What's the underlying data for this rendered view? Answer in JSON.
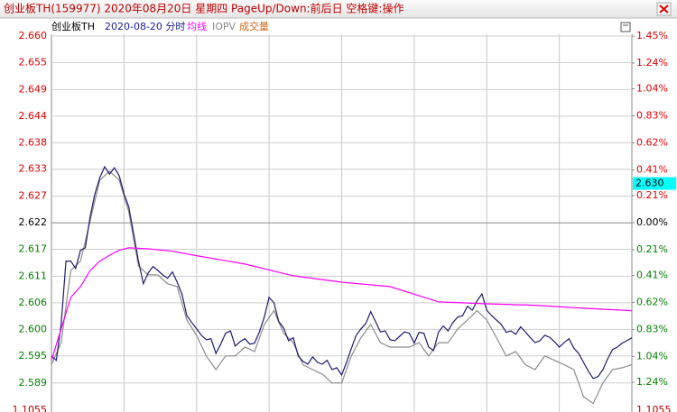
{
  "window_title": "创业板TH(159977) 2020年08月20日 星期四 PageUp/Down:前后日 空格键:操作",
  "chart_data": {
    "type": "line",
    "title": "创业板TH",
    "subtitle": "2020-08-20 分时",
    "volume_label": "成交量",
    "volume_axis_label": "1.1055",
    "price_marker": {
      "value": 2.63,
      "label": "2.630"
    },
    "up_color": "#e00000",
    "down_color": "#008000",
    "grid": true,
    "xlim": [
      0,
      240
    ],
    "ylim": [
      2.5844,
      2.66
    ],
    "yticks": [
      {
        "value": 2.66,
        "label": "2.660"
      },
      {
        "value": 2.6546,
        "label": "2.655"
      },
      {
        "value": 2.6491,
        "label": "2.649"
      },
      {
        "value": 2.6437,
        "label": "2.644"
      },
      {
        "value": 2.6383,
        "label": "2.638"
      },
      {
        "value": 2.6329,
        "label": "2.633"
      },
      {
        "value": 2.6274,
        "label": "2.627"
      },
      {
        "value": 2.622,
        "label": "2.622"
      },
      {
        "value": 2.6166,
        "label": "2.617"
      },
      {
        "value": 2.6111,
        "label": "2.611"
      },
      {
        "value": 2.6057,
        "label": "2.606"
      },
      {
        "value": 2.6003,
        "label": "2.600"
      },
      {
        "value": 2.5949,
        "label": "2.595"
      },
      {
        "value": 2.5894,
        "label": "2.589"
      }
    ],
    "y2lim": [
      -1.436,
      1.45
    ],
    "y2ticks": [
      {
        "value": 1.45,
        "label": "1.45%"
      },
      {
        "value": 1.24,
        "label": "1.24%"
      },
      {
        "value": 1.04,
        "label": "1.04%"
      },
      {
        "value": 0.83,
        "label": "0.83%"
      },
      {
        "value": 0.62,
        "label": "0.62%"
      },
      {
        "value": 0.41,
        "label": "0.41%"
      },
      {
        "value": 0.21,
        "label": "0.21%"
      },
      {
        "value": 0,
        "label": "0.00%"
      },
      {
        "value": -0.21,
        "label": "0.21%"
      },
      {
        "value": -0.41,
        "label": "0.41%"
      },
      {
        "value": -0.62,
        "label": "0.62%"
      },
      {
        "value": -0.83,
        "label": "0.83%"
      },
      {
        "value": -1.04,
        "label": "1.04%"
      },
      {
        "value": -1.24,
        "label": "1.24%"
      }
    ],
    "series": [
      {
        "name": "IOPV",
        "color": "#8c8c8c",
        "x": [
          0,
          4,
          8,
          12,
          16,
          20,
          24,
          28,
          32,
          36,
          40,
          44,
          48,
          52,
          56,
          60,
          64,
          68,
          72,
          76,
          80,
          84,
          88,
          92,
          96,
          100,
          104,
          108,
          112,
          116,
          120,
          124,
          128,
          132,
          136,
          140,
          144,
          148,
          152,
          156,
          160,
          164,
          168,
          172,
          176,
          180,
          184,
          188,
          192,
          196,
          200,
          204,
          208,
          212,
          216,
          220,
          224,
          228,
          232,
          236,
          240
        ],
        "values": [
          2.5931,
          2.5976,
          2.6123,
          2.6142,
          2.6224,
          2.6307,
          2.6325,
          2.6307,
          2.6242,
          2.6132,
          2.6114,
          2.6114,
          2.6096,
          2.609,
          2.6022,
          2.5991,
          2.5949,
          2.5921,
          2.5949,
          2.5949,
          2.5967,
          2.5958,
          2.6013,
          2.6041,
          2.5995,
          2.5976,
          2.5931,
          2.5921,
          2.5912,
          2.5894,
          2.5894,
          2.5949,
          2.5986,
          2.6013,
          2.5976,
          2.5967,
          2.5967,
          2.5967,
          2.5976,
          2.5949,
          2.5976,
          2.5976,
          2.6004,
          2.6022,
          2.6041,
          2.6022,
          2.5986,
          2.5949,
          2.5958,
          2.5931,
          2.5921,
          2.5949,
          2.594,
          2.5931,
          2.5921,
          2.5866,
          2.5852,
          2.5894,
          2.5921,
          2.5925,
          2.5931
        ]
      },
      {
        "color": "#1c1c6e",
        "x": [
          0,
          2,
          4,
          6,
          8,
          10,
          12,
          14,
          16,
          18,
          20,
          22,
          24,
          26,
          28,
          30,
          32,
          34,
          36,
          38,
          40,
          42,
          44,
          46,
          48,
          50,
          52,
          54,
          56,
          58,
          60,
          62,
          64,
          66,
          68,
          70,
          72,
          74,
          76,
          78,
          80,
          82,
          84,
          86,
          88,
          90,
          92,
          94,
          96,
          98,
          100,
          102,
          104,
          106,
          108,
          110,
          112,
          114,
          116,
          118,
          120,
          122,
          124,
          126,
          128,
          130,
          132,
          134,
          136,
          138,
          140,
          142,
          144,
          146,
          148,
          150,
          152,
          154,
          156,
          158,
          160,
          162,
          164,
          166,
          168,
          170,
          172,
          174,
          176,
          178,
          180,
          182,
          184,
          186,
          188,
          190,
          192,
          194,
          196,
          198,
          200,
          202,
          204,
          206,
          208,
          210,
          212,
          214,
          216,
          218,
          220,
          222,
          224,
          226,
          228,
          230,
          232,
          234,
          236,
          238,
          240
        ],
        "values": [
          2.5949,
          2.594,
          2.6013,
          2.6142,
          2.6142,
          2.6127,
          2.6164,
          2.6169,
          2.6233,
          2.6279,
          2.6312,
          2.6334,
          2.6319,
          2.6332,
          2.6316,
          2.6279,
          2.6252,
          2.6197,
          2.6142,
          2.6096,
          2.6118,
          2.6131,
          2.6123,
          2.6114,
          2.6107,
          2.612,
          2.6099,
          2.6074,
          2.6031,
          2.6017,
          2.6004,
          2.5991,
          2.5982,
          2.5984,
          2.5954,
          2.5973,
          2.5995,
          2.6,
          2.5969,
          2.5978,
          2.5984,
          2.5973,
          2.5975,
          2.5998,
          2.6028,
          2.6068,
          2.6057,
          2.6019,
          2.6006,
          2.598,
          2.5986,
          2.5949,
          2.5938,
          2.5932,
          2.5947,
          2.5936,
          2.5932,
          2.594,
          2.5921,
          2.5925,
          2.591,
          2.5936,
          2.5964,
          2.5991,
          2.6004,
          2.6015,
          2.6039,
          2.6019,
          2.5998,
          2.6,
          2.5982,
          2.598,
          2.5989,
          2.5998,
          2.5995,
          2.5975,
          2.5997,
          2.5995,
          2.5967,
          2.596,
          2.5997,
          2.601,
          2.6,
          2.6017,
          2.6028,
          2.6031,
          2.605,
          2.6042,
          2.6061,
          2.6075,
          2.6042,
          2.6031,
          2.6022,
          2.6013,
          2.5997,
          2.6,
          2.5993,
          2.6008,
          2.5998,
          2.5986,
          2.5976,
          2.598,
          2.5991,
          2.5987,
          2.5978,
          2.5967,
          2.5976,
          2.5984,
          2.5965,
          2.5954,
          2.5936,
          2.5918,
          2.5903,
          2.5907,
          2.5921,
          2.5943,
          2.5962,
          2.5967,
          2.5975,
          2.598,
          2.5986
        ]
      },
      {
        "name": "均线",
        "color": "#ff00ff",
        "x": [
          0,
          4,
          8,
          12,
          16,
          20,
          24,
          28,
          32,
          40,
          50,
          60,
          80,
          100,
          120,
          140,
          160,
          180,
          200,
          220,
          240
        ],
        "values": [
          2.594,
          2.6004,
          2.6068,
          2.609,
          2.6123,
          2.6142,
          2.6154,
          2.6164,
          2.6169,
          2.6167,
          2.6162,
          2.6153,
          2.6136,
          2.6112,
          2.6099,
          2.609,
          2.6059,
          2.6055,
          2.6052,
          2.6046,
          2.6041
        ]
      }
    ]
  }
}
